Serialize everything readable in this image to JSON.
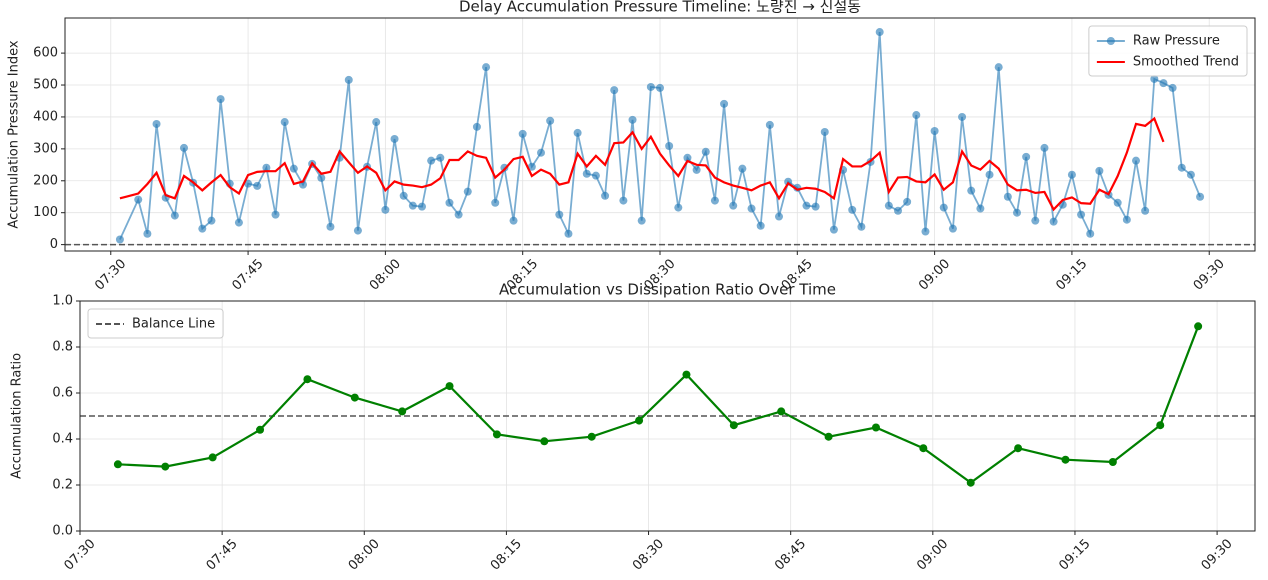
{
  "chart_data": [
    {
      "type": "line",
      "title": "Delay Accumulation Pressure Timeline: 노량진 → 신설동",
      "ylabel": "Accumulation Pressure Index",
      "x": [
        "07:31",
        "07:33",
        "07:34",
        "07:35",
        "07:36",
        "07:37",
        "07:38",
        "07:39",
        "07:40",
        "07:41",
        "07:42",
        "07:43",
        "07:44",
        "07:45",
        "07:46",
        "07:47",
        "07:48",
        "07:49",
        "07:50",
        "07:51",
        "07:52",
        "07:53",
        "07:54",
        "07:55",
        "07:56",
        "07:57",
        "07:58",
        "07:59",
        "08:00",
        "08:01",
        "08:02",
        "08:03",
        "08:04",
        "08:05",
        "08:06",
        "08:07",
        "08:08",
        "08:09",
        "08:10",
        "08:11",
        "08:12",
        "08:13",
        "08:14",
        "08:15",
        "08:16",
        "08:17",
        "08:18",
        "08:19",
        "08:20",
        "08:21",
        "08:22",
        "08:23",
        "08:24",
        "08:25",
        "08:26",
        "08:27",
        "08:28",
        "08:29",
        "08:30",
        "08:31",
        "08:32",
        "08:33",
        "08:34",
        "08:35",
        "08:36",
        "08:37",
        "08:38",
        "08:39",
        "08:40",
        "08:41",
        "08:42",
        "08:43",
        "08:44",
        "08:45",
        "08:46",
        "08:47",
        "08:48",
        "08:49",
        "08:50",
        "08:51",
        "08:52",
        "08:53",
        "08:54",
        "08:55",
        "08:56",
        "08:57",
        "08:58",
        "08:59",
        "09:00",
        "09:01",
        "09:02",
        "09:03",
        "09:04",
        "09:05",
        "09:06",
        "09:07",
        "09:08",
        "09:09",
        "09:10",
        "09:11",
        "09:12",
        "09:13",
        "09:14",
        "09:15",
        "09:16",
        "09:17",
        "09:18",
        "09:19",
        "09:20",
        "09:21",
        "09:22",
        "09:23",
        "09:24",
        "09:25",
        "09:26",
        "09:27",
        "09:28",
        "09:29"
      ],
      "series": [
        {
          "name": "Raw Pressure",
          "color": "#1f77b4",
          "opacity": 0.6,
          "marker": true,
          "values": [
            16,
            141,
            34,
            378,
            147,
            91,
            303,
            194,
            50,
            75,
            456,
            191,
            69,
            191,
            184,
            241,
            94,
            384,
            238,
            188,
            253,
            209,
            56,
            272,
            516,
            44,
            244,
            384,
            109,
            331,
            153,
            122,
            119,
            263,
            272,
            131,
            94,
            166,
            369,
            556,
            131,
            241,
            75,
            347,
            244,
            288,
            388,
            94,
            34,
            350,
            222,
            216,
            153,
            484,
            138,
            391,
            75,
            494,
            491,
            309,
            116,
            272,
            234,
            291,
            138,
            441,
            122,
            238,
            113,
            59,
            375,
            88,
            197,
            178,
            122,
            119,
            353,
            47,
            234,
            109,
            56,
            259,
            666,
            122,
            106,
            134,
            406,
            41,
            356,
            116,
            50,
            400,
            169,
            113,
            219,
            556,
            150,
            100,
            275,
            75,
            303,
            72,
            125,
            219,
            94,
            34,
            231,
            156,
            131,
            78,
            263,
            106,
            519,
            506,
            491,
            241,
            219,
            150
          ]
        },
        {
          "name": "Smoothed Trend",
          "color": "#ff0000",
          "opacity": 1,
          "marker": false,
          "values": [
            145,
            160,
            190,
            225,
            155,
            145,
            215,
            195,
            170,
            195,
            218,
            180,
            160,
            218,
            228,
            230,
            230,
            255,
            190,
            198,
            255,
            222,
            228,
            292,
            258,
            225,
            245,
            225,
            170,
            198,
            188,
            185,
            180,
            188,
            208,
            265,
            265,
            292,
            278,
            272,
            210,
            235,
            268,
            275,
            215,
            235,
            222,
            188,
            195,
            285,
            245,
            278,
            250,
            318,
            320,
            352,
            300,
            338,
            285,
            248,
            215,
            262,
            250,
            248,
            210,
            195,
            185,
            178,
            170,
            185,
            195,
            145,
            192,
            172,
            178,
            175,
            165,
            145,
            268,
            245,
            245,
            262,
            288,
            165,
            210,
            212,
            198,
            195,
            220,
            172,
            195,
            292,
            248,
            235,
            262,
            238,
            188,
            170,
            172,
            162,
            165,
            110,
            140,
            148,
            130,
            128,
            172,
            158,
            215,
            288,
            378,
            372,
            395,
            322,
            null,
            null,
            null,
            null
          ]
        }
      ],
      "hlines": [
        {
          "y": 0,
          "color": "#555555"
        }
      ],
      "xlim": [
        "07:25",
        "09:35"
      ],
      "xticks": [
        "07:30",
        "07:45",
        "08:00",
        "08:15",
        "08:30",
        "08:45",
        "09:00",
        "09:15",
        "09:30"
      ],
      "ylim": [
        -20,
        710
      ],
      "yticks": [
        0,
        100,
        200,
        300,
        400,
        500,
        600
      ],
      "grid": true,
      "legend": "upper right"
    },
    {
      "type": "line",
      "title": "Accumulation vs Dissipation Ratio Over Time",
      "ylabel": "Accumulation Ratio",
      "x": [
        "07:34",
        "07:39",
        "07:44",
        "07:49",
        "07:54",
        "07:59",
        "08:04",
        "08:09",
        "08:14",
        "08:19",
        "08:24",
        "08:29",
        "08:34",
        "08:39",
        "08:44",
        "08:49",
        "08:54",
        "08:59",
        "09:04",
        "09:09",
        "09:14",
        "09:19",
        "09:24",
        "09:28"
      ],
      "series": [
        {
          "color": "#008000",
          "opacity": 1,
          "marker": true,
          "values": [
            0.29,
            0.28,
            0.32,
            0.44,
            0.66,
            0.58,
            0.52,
            0.63,
            0.42,
            0.39,
            0.41,
            0.48,
            0.68,
            0.46,
            0.52,
            0.41,
            0.45,
            0.36,
            0.21,
            0.36,
            0.31,
            0.3,
            0.46,
            0.89
          ]
        }
      ],
      "hlines": [
        {
          "y": 0.5,
          "color": "#555555",
          "label": "Balance Line"
        }
      ],
      "xlim": [
        "07:30",
        "09:34"
      ],
      "xticks": [
        "07:30",
        "07:45",
        "08:00",
        "08:15",
        "08:30",
        "08:45",
        "09:00",
        "09:15",
        "09:30"
      ],
      "ylim": [
        0,
        1
      ],
      "yticks": [
        {
          "value": 0,
          "label": "0.0"
        },
        0.2,
        0.4,
        0.6,
        0.8,
        {
          "value": 1,
          "label": "1.0"
        }
      ],
      "grid": true,
      "legend": "upper left"
    }
  ]
}
